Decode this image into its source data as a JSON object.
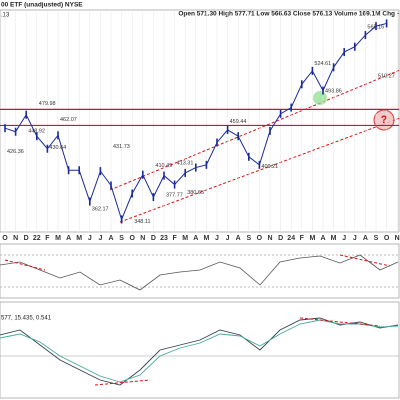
{
  "chart_data": {
    "type": "line",
    "title": "00 ETF (unadjusted) NYSE",
    "subtitle": "Open 571.30 High 577.71 Low 566.63 Close 576.13 Volume 169.1M Chg -",
    "corner_label": ".13",
    "indicator_label": "577, 15.435, 0.541",
    "question_mark": "?",
    "categories": [
      "O",
      "N",
      "D",
      "22",
      "F",
      "M",
      "A",
      "M",
      "J",
      "J",
      "A",
      "S",
      "O",
      "N",
      "D",
      "23",
      "F",
      "M",
      "A",
      "M",
      "J",
      "J",
      "A",
      "S",
      "O",
      "N",
      "D",
      "24",
      "F",
      "M",
      "A",
      "M",
      "J",
      "J",
      "A",
      "S",
      "O",
      "N"
    ],
    "series": [
      {
        "name": "Price",
        "color": "#1a2a9c",
        "values": [
          459,
          455,
          474,
          450,
          436,
          451,
          412,
          412,
          377,
          411,
          395,
          357,
          386,
          407,
          382,
          406,
          396,
          409,
          415,
          418,
          443,
          457,
          450,
          427,
          418,
          456,
          475,
          482,
          508,
          523,
          501,
          527,
          544,
          550,
          563,
          573,
          576,
          null
        ]
      }
    ],
    "levels": [
      479.98,
      462.07
    ],
    "level_color": "#d11",
    "annotations": [
      {
        "month": 3,
        "value": 479.98,
        "label": "479.98"
      },
      {
        "month": 5,
        "value": 462.07,
        "label": "462.07"
      },
      {
        "month": 2,
        "value": 448.92,
        "label": "448.92"
      },
      {
        "month": 0,
        "value": 426.36,
        "label": "426.36"
      },
      {
        "month": 4,
        "value": 430.64,
        "label": "430.64"
      },
      {
        "month": 10,
        "value": 431.73,
        "label": "431.73"
      },
      {
        "month": 14,
        "value": 410.49,
        "label": "410.49"
      },
      {
        "month": 16,
        "value": 413.31,
        "label": "413.31"
      },
      {
        "month": 8,
        "value": 362.17,
        "label": "362.17"
      },
      {
        "month": 12,
        "value": 348.11,
        "label": "348.11"
      },
      {
        "month": 15,
        "value": 377.77,
        "label": "377.77"
      },
      {
        "month": 17,
        "value": 380.65,
        "label": "380.65"
      },
      {
        "month": 21,
        "value": 459.44,
        "label": "459.44"
      },
      {
        "month": 24,
        "value": 409.21,
        "label": "409.21"
      },
      {
        "month": 29,
        "value": 524.61,
        "label": "524.61"
      },
      {
        "month": 30,
        "value": 493.86,
        "label": "493.86"
      },
      {
        "month": 34,
        "value": 565.16,
        "label": "565.16"
      },
      {
        "month": 35,
        "value": 510.27,
        "label": "510.27"
      }
    ],
    "ylim": [
      343,
      591
    ]
  }
}
